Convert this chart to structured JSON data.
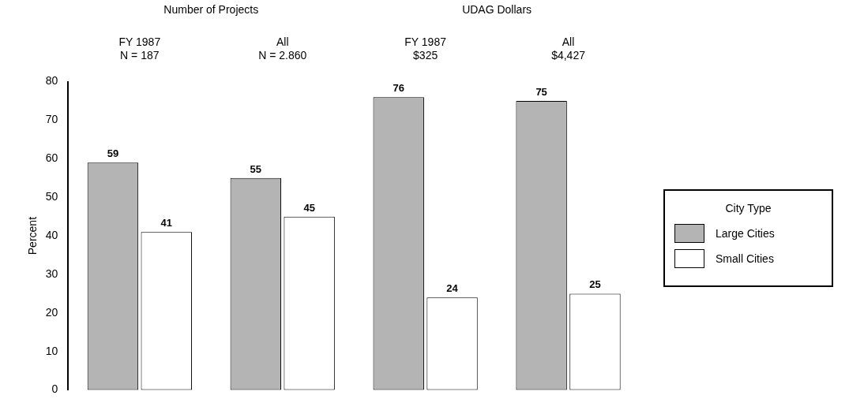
{
  "chart_data": {
    "type": "bar",
    "categories": [
      "FY 1987\nN = 187",
      "All\nN = 2.860",
      "FY 1987\n$325",
      "All\n$4,427"
    ],
    "annotations": [
      "Number of Projects",
      "UDAG Dollars"
    ],
    "series": [
      {
        "name": "Large Cities",
        "color": "#b4b4b4",
        "values": [
          59,
          55,
          76,
          75
        ]
      },
      {
        "name": "Small Cities",
        "color": "#ffffff",
        "values": [
          41,
          45,
          24,
          25
        ]
      }
    ],
    "ylabel": "Percent",
    "ylim": [
      0,
      80
    ],
    "yticks": [
      0,
      10,
      20,
      30,
      40,
      50,
      60,
      70,
      80
    ],
    "legend": "right",
    "legend_title": "City Type",
    "data_labels": true,
    "grid": false
  }
}
